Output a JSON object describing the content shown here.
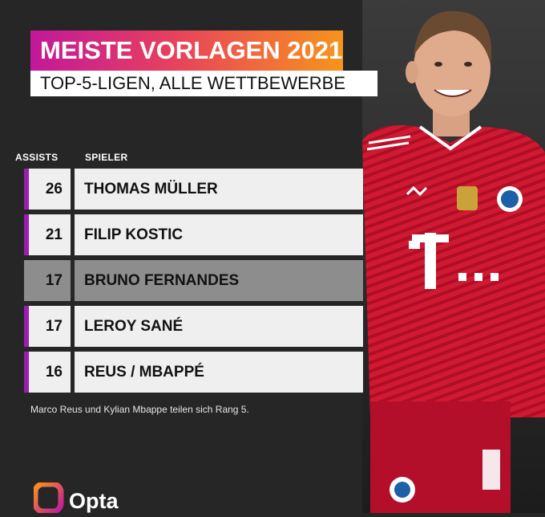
{
  "header": {
    "title": "MEISTE VORLAGEN 2021",
    "subtitle": "TOP-5-LIGEN, ALLE WETTBEWERBE"
  },
  "chart_data": {
    "type": "table",
    "title": "MEISTE VORLAGEN 2021",
    "subtitle": "TOP-5-LIGEN, ALLE WETTBEWERBE",
    "columns": [
      "ASSISTS",
      "SPIELER"
    ],
    "rows": [
      {
        "assists": 26,
        "player": "THOMAS MÜLLER"
      },
      {
        "assists": 21,
        "player": "FILIP KOSTIC"
      },
      {
        "assists": 17,
        "player": "BRUNO FERNANDES"
      },
      {
        "assists": 17,
        "player": "LEROY SANÉ"
      },
      {
        "assists": 16,
        "player": "REUS / MBAPPÉ"
      }
    ],
    "highlighted_rows": [
      0,
      1,
      3,
      4
    ],
    "annotation": "Marco Reus und Kylian Mbappe teilen sich Rang 5."
  },
  "colors": {
    "background": "#262626",
    "accent": "#9c1eb0",
    "title_gradient": [
      "#c2189b",
      "#e7405e",
      "#f7941d"
    ],
    "row_light": "#efefef",
    "row_gray": "#8d8d8d",
    "jersey": "#c8102e"
  },
  "photo": {
    "icon": "player-photo"
  },
  "brand": {
    "name": "Opta",
    "icon": "opta-logo-icon"
  }
}
